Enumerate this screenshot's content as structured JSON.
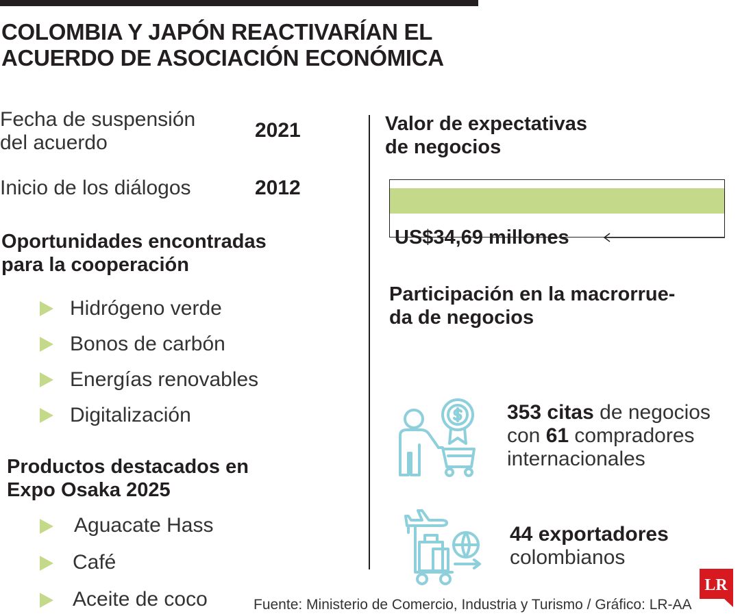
{
  "title": {
    "line1": "COLOMBIA Y JAPÓN REACTIVARÍAN EL",
    "line2": "ACUERDO DE ASOCIACIÓN ECONÓMICA"
  },
  "facts": [
    {
      "label_line1": "Fecha de suspensión",
      "label_line2": "del acuerdo",
      "value": "2021"
    },
    {
      "label_line1": "Inicio de los diálogos",
      "value": "2012"
    }
  ],
  "opportunities": {
    "heading_line1": "Oportunidades encontradas",
    "heading_line2": "para la cooperación",
    "items": [
      "Hidrógeno verde",
      "Bonos de carbón",
      "Energías renovables",
      "Digitalización"
    ]
  },
  "products": {
    "heading_line1": "Productos destacados en",
    "heading_line2": "Expo Osaka 2025",
    "items": [
      "Aguacate Hass",
      "Café",
      "Aceite de coco"
    ]
  },
  "expectations": {
    "heading_line1": "Valor de expectativas",
    "heading_line2": "de negocios",
    "value_label": "US$34,69 millones"
  },
  "participation": {
    "heading_line1": "Participación en la macrorrue-",
    "heading_line2": "da de negocios",
    "stat1": {
      "count": "353",
      "count_suffix": "citas",
      "text1": " de negocios",
      "text2_prefix": "con ",
      "buyers": "61",
      "text2_suffix": " compradores",
      "text3": "internacionales",
      "icon": "buyer-cart-icon"
    },
    "stat2": {
      "count_text": "44 exportadores",
      "text2": "colombianos",
      "icon": "export-luggage-icon"
    }
  },
  "source": "Fuente: Ministerio de Comercio, Industria y Turismo / Gráfico: LR-AA",
  "logo": {
    "text": "LR",
    "color": "#d71920"
  },
  "colors": {
    "accent": "#c5d98b",
    "icon": "#8ecfdc",
    "text": "#231f20"
  }
}
